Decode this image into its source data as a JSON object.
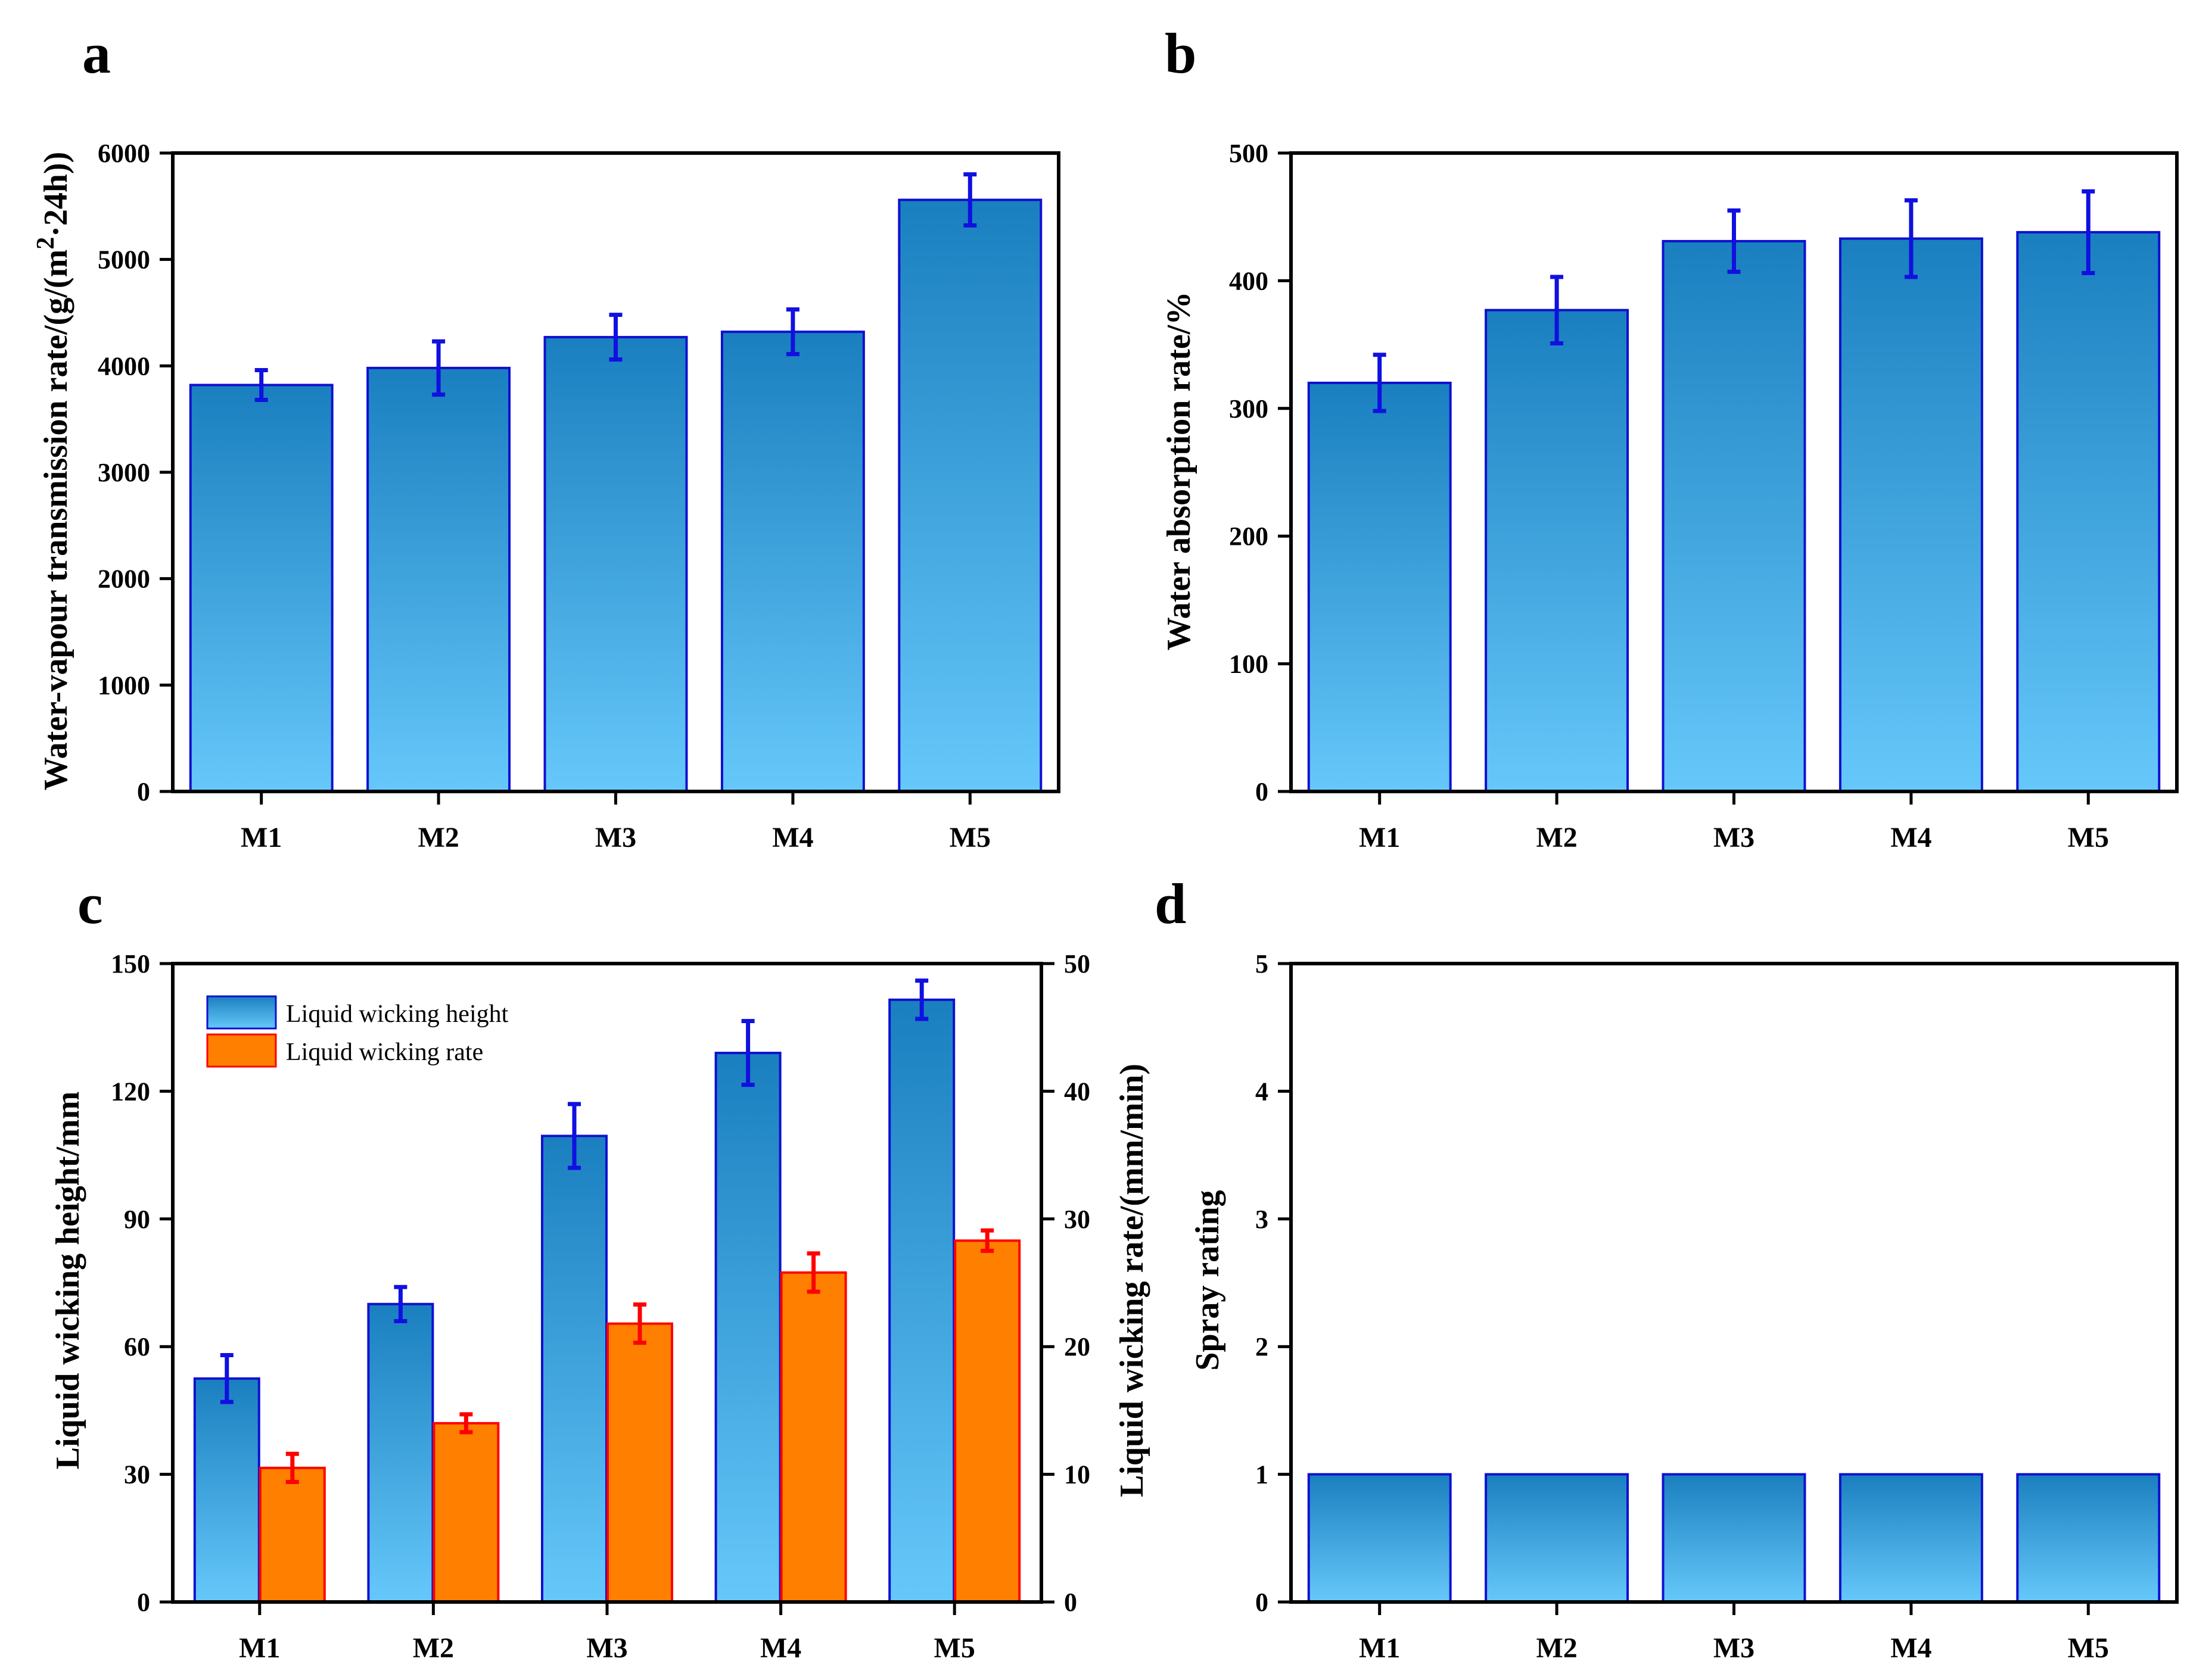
{
  "colors": {
    "bar_top": "#1a7fbf",
    "bar_bottom": "#66c8fa",
    "bar_edge": "#1010d0",
    "err_blue": "#1010e0",
    "rate_fill": "#ff8000",
    "rate_edge": "#ff0000",
    "err_red": "#ff0000"
  },
  "chart_data": [
    {
      "panel": "a",
      "type": "bar",
      "categories": [
        "M1",
        "M2",
        "M3",
        "M4",
        "M5"
      ],
      "series": [
        {
          "name": "Water-vapour transmission rate",
          "values": [
            3820,
            3980,
            4270,
            4320,
            5560
          ],
          "errors": [
            140,
            250,
            210,
            210,
            240
          ]
        }
      ],
      "title": "",
      "xlabel": "",
      "ylabel": "Water-vapour transmission rate/(g/(m²·24h))",
      "ylabel_parts": [
        "Water-vapour transmission rate/(g/(m",
        "2",
        "·24h))"
      ],
      "ylim": [
        0,
        6000
      ],
      "yticks": [
        "0",
        "1000",
        "2000",
        "3000",
        "4000",
        "5000",
        "6000"
      ]
    },
    {
      "panel": "b",
      "type": "bar",
      "categories": [
        "M1",
        "M2",
        "M3",
        "M4",
        "M5"
      ],
      "series": [
        {
          "name": "Water absorption rate",
          "values": [
            320,
            377,
            431,
            433,
            438
          ],
          "errors": [
            22,
            26,
            24,
            30,
            32
          ]
        }
      ],
      "title": "",
      "xlabel": "",
      "ylabel": "Water absorption rate/%",
      "ylim": [
        0,
        500
      ],
      "yticks": [
        "0",
        "100",
        "200",
        "300",
        "400",
        "500"
      ]
    },
    {
      "panel": "c",
      "type": "bar",
      "categories": [
        "M1",
        "M2",
        "M3",
        "M4",
        "M5"
      ],
      "series": [
        {
          "name": "Liquid wicking height",
          "axis": "left",
          "values": [
            52.5,
            70,
            109.5,
            129,
            141.5
          ],
          "errors": [
            5.5,
            4,
            7.5,
            7.5,
            4.5
          ]
        },
        {
          "name": "Liquid wicking rate",
          "axis": "right",
          "values": [
            10.5,
            14,
            21.8,
            25.8,
            28.3
          ],
          "errors": [
            1.1,
            0.7,
            1.5,
            1.5,
            0.8
          ]
        }
      ],
      "title": "",
      "xlabel": "",
      "ylabel": "Liquid wicking height/mm",
      "ylabel_right": "Liquid wicking rate/(mm/min)",
      "ylim": [
        0,
        150
      ],
      "ylim_right": [
        0,
        50
      ],
      "yticks": [
        "0",
        "30",
        "60",
        "90",
        "120",
        "150"
      ],
      "yticks_right": [
        "0",
        "10",
        "20",
        "30",
        "40",
        "50"
      ],
      "legend": [
        "Liquid wicking height",
        "Liquid wicking rate"
      ],
      "legend_position": "top-left"
    },
    {
      "panel": "d",
      "type": "bar",
      "categories": [
        "M1",
        "M2",
        "M3",
        "M4",
        "M5"
      ],
      "series": [
        {
          "name": "Spray rating",
          "values": [
            1,
            1,
            1,
            1,
            1
          ]
        }
      ],
      "title": "",
      "xlabel": "",
      "ylabel": "Spray rating",
      "ylim": [
        0,
        5
      ],
      "yticks": [
        "0",
        "1",
        "2",
        "3",
        "4",
        "5"
      ]
    }
  ]
}
